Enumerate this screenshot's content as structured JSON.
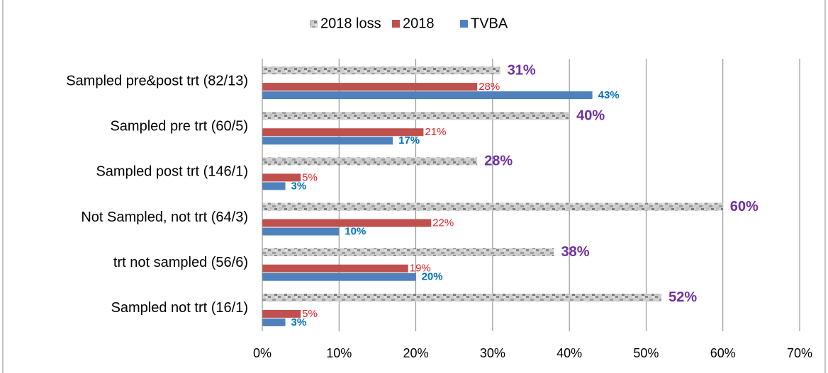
{
  "chart_data": {
    "type": "bar",
    "orientation": "horizontal",
    "categories": [
      "Sampled pre&post trt (82/13)",
      "Sampled pre trt (60/5)",
      "Sampled post trt (146/1)",
      "Not Sampled, not trt (64/3)",
      "trt not sampled (56/6)",
      "Sampled not trt (16/1)"
    ],
    "series": [
      {
        "name": "2018 loss",
        "color": "#a6a6a6",
        "values": [
          31,
          40,
          28,
          60,
          38,
          52
        ],
        "value_labels": [
          "31%",
          "40%",
          "28%",
          "60%",
          "38%",
          "52%"
        ],
        "label_color": "#7030a0"
      },
      {
        "name": "2018",
        "color": "#c0504d",
        "values": [
          28,
          21,
          5,
          22,
          19,
          5
        ],
        "value_labels": [
          "28%",
          "21%",
          "5%",
          "22%",
          "19%",
          "5%"
        ],
        "label_color": "#e02020"
      },
      {
        "name": "TVBA",
        "color": "#4f81bd",
        "values": [
          43,
          17,
          3,
          10,
          20,
          3
        ],
        "value_labels": [
          "43%",
          "17%",
          "3%",
          "10%",
          "20%",
          "3%"
        ],
        "label_color": "#0070c0"
      }
    ],
    "xlim": [
      0,
      70
    ],
    "xticks": [
      {
        "value": 0,
        "label": "0%"
      },
      {
        "value": 10,
        "label": "10%"
      },
      {
        "value": 20,
        "label": "20%"
      },
      {
        "value": 30,
        "label": "30%"
      },
      {
        "value": 40,
        "label": "40%"
      },
      {
        "value": 50,
        "label": "50%"
      },
      {
        "value": 60,
        "label": "60%"
      },
      {
        "value": 70,
        "label": "70%"
      }
    ],
    "grid": true,
    "legend": "top"
  }
}
